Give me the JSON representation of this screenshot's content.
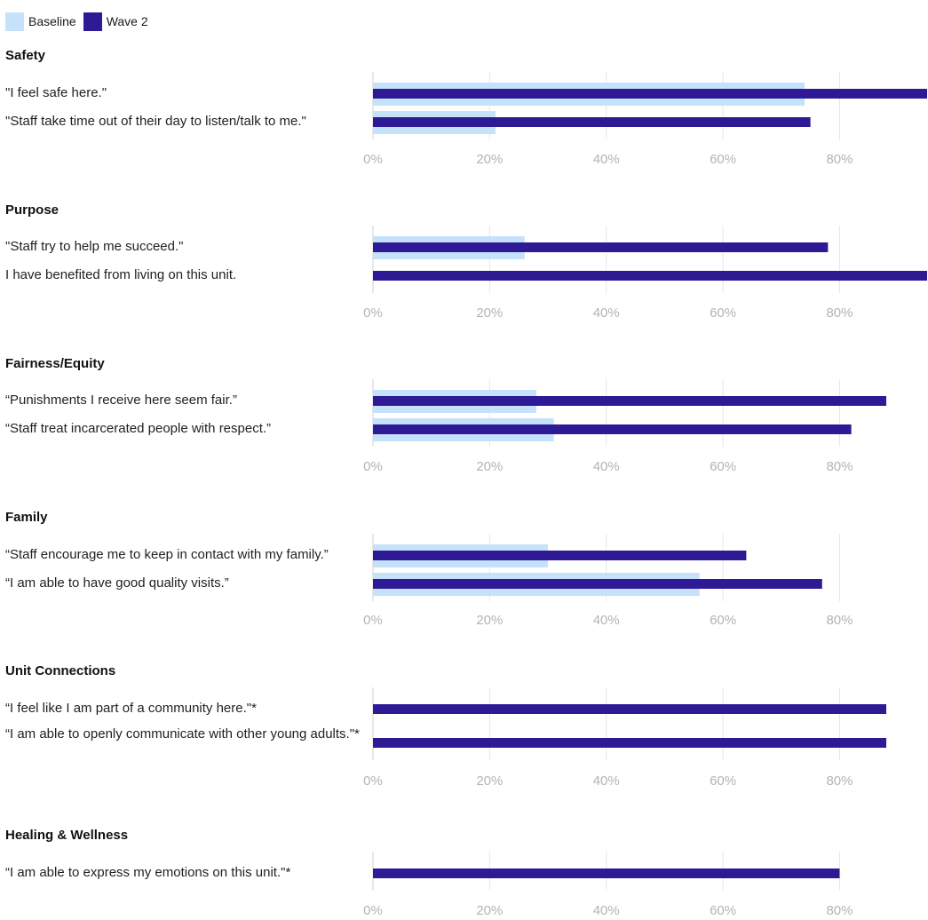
{
  "legend": [
    {
      "name": "Baseline",
      "color": "#c6e2fb"
    },
    {
      "name": "Wave 2",
      "color": "#2e1a94"
    }
  ],
  "chart_data": {
    "type": "bar",
    "orientation": "horizontal",
    "xlim": [
      0,
      95
    ],
    "x_ticks": [
      0,
      20,
      40,
      60,
      80
    ],
    "x_tick_labels": [
      "0%",
      "20%",
      "40%",
      "60%",
      "80%"
    ],
    "grid": true,
    "legend_position": "top-left",
    "groups": [
      {
        "title": "Safety",
        "items": [
          {
            "label": "\"I feel safe here.\"",
            "baseline": 74,
            "wave2": 95
          },
          {
            "label": "\"Staff take time out of their day to listen/talk to me.\"",
            "baseline": 21,
            "wave2": 75
          }
        ]
      },
      {
        "title": "Purpose",
        "items": [
          {
            "label": "\"Staff try to help me succeed.\"",
            "baseline": 26,
            "wave2": 78
          },
          {
            "label": "I have benefited from living on this unit.",
            "baseline": null,
            "wave2": 95
          }
        ]
      },
      {
        "title": "Fairness/Equity",
        "items": [
          {
            "label": "“Punishments I receive here seem fair.”",
            "baseline": 28,
            "wave2": 88
          },
          {
            "label": "“Staff treat incarcerated people with respect.”",
            "baseline": 31,
            "wave2": 82
          }
        ]
      },
      {
        "title": "Family",
        "items": [
          {
            "label": "“Staff encourage me to keep in contact with my family.”",
            "baseline": 30,
            "wave2": 64
          },
          {
            "label": "“I am able to have good quality visits.”",
            "baseline": 56,
            "wave2": 77
          }
        ]
      },
      {
        "title": "Unit Connections",
        "items": [
          {
            "label": "“I feel like I am part of a community here.\"*",
            "baseline": null,
            "wave2": 88
          },
          {
            "label": "“I am able to openly communicate with other young adults.\"*",
            "baseline": null,
            "wave2": 88
          }
        ]
      },
      {
        "title": "Healing & Wellness",
        "items": [
          {
            "label": "“I am able to express my emotions on this unit.\"*",
            "baseline": null,
            "wave2": 80
          }
        ]
      }
    ]
  }
}
